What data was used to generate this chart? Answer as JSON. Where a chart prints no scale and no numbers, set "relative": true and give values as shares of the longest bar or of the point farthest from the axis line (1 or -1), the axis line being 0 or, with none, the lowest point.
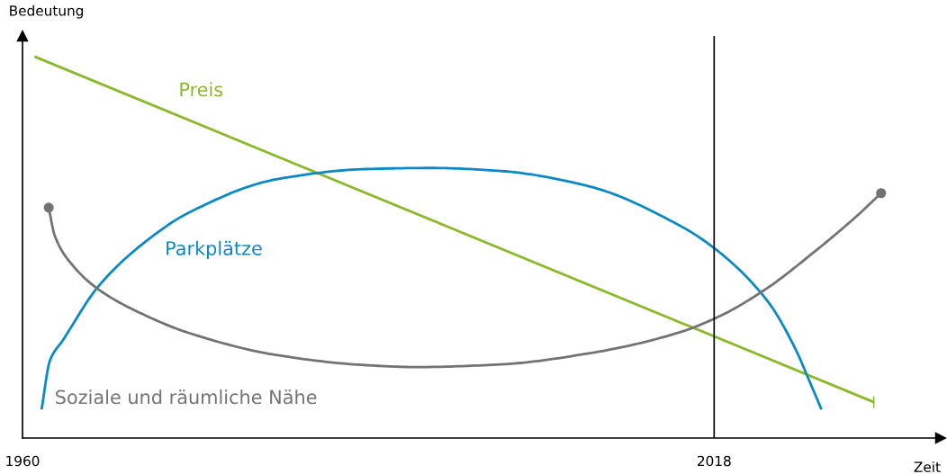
{
  "chart_data": {
    "type": "line",
    "relative": true,
    "xlabel": "Zeit",
    "ylabel": "Bedeutung",
    "xlim": [
      1960,
      2037
    ],
    "xticks": [
      1960,
      2018
    ],
    "grid": false,
    "legend": false,
    "line_style": "solid",
    "ref_lines": [
      {
        "axis": "x",
        "value": 2018,
        "color": "#000000"
      }
    ],
    "series": [
      {
        "name": "Preis",
        "color": "#8cb82b",
        "x": [
          1961.0,
          2031.4
        ],
        "values": [
          1.0,
          0.094
        ]
      },
      {
        "name": "Parkplätze",
        "color": "#0a8ac4",
        "x": [
          1961.6,
          1962.3,
          1963.4,
          1966.4,
          1970.2,
          1973.9,
          1981.4,
          1988.8,
          1994.3,
          2000.1,
          2007.5,
          2015.0,
          2018.0,
          2022.5,
          2024.7,
          2026.2,
          2027.0
        ],
        "values": [
          0.075,
          0.203,
          0.257,
          0.399,
          0.512,
          0.59,
          0.679,
          0.705,
          0.708,
          0.7,
          0.66,
          0.559,
          0.498,
          0.358,
          0.241,
          0.134,
          0.075
        ]
      },
      {
        "name": "Soziale und räumliche Nähe",
        "color": "#737373",
        "x": [
          1962.2,
          1962.7,
          1964.2,
          1966.4,
          1970.2,
          1973.9,
          1981.4,
          1988.8,
          1993.0,
          2000.1,
          2007.5,
          2015.0,
          2018.7,
          2022.5,
          2026.2,
          2030.0,
          2032.0
        ],
        "values": [
          0.604,
          0.531,
          0.453,
          0.389,
          0.323,
          0.276,
          0.217,
          0.191,
          0.186,
          0.193,
          0.222,
          0.276,
          0.323,
          0.394,
          0.483,
          0.583,
          0.642
        ]
      }
    ]
  }
}
